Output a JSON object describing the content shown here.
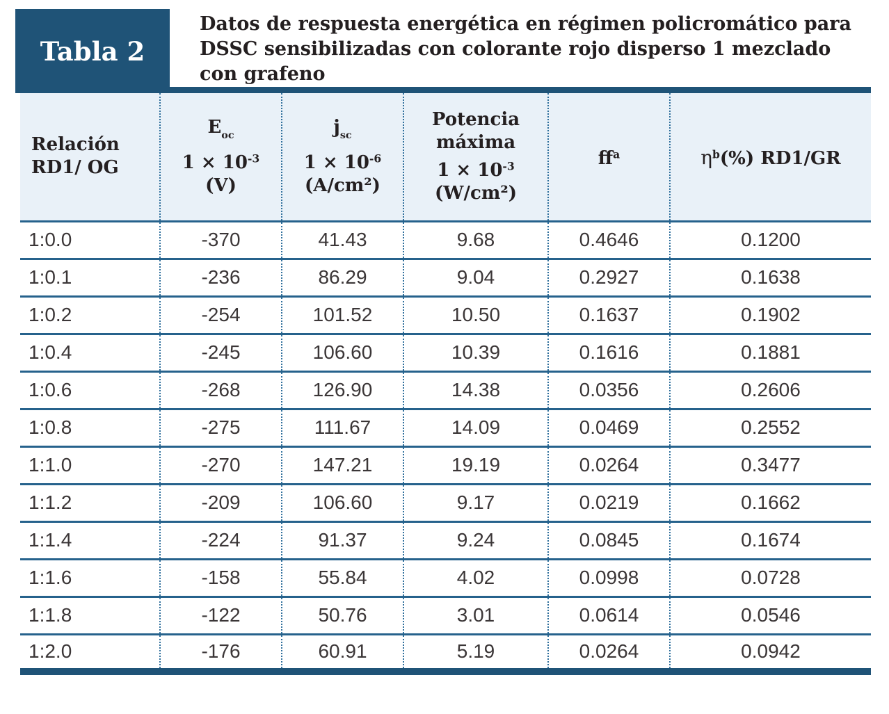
{
  "badge": {
    "label": "Tabla 2"
  },
  "title": {
    "line1": "Datos de respuesta energética en régimen policromático para",
    "line2": "DSSC sensibilizadas con colorante rojo disperso 1 mezclado",
    "line3": "con grafeno"
  },
  "colors": {
    "accent_dark_blue": "#1f5377",
    "header_background": "#e9f1f8",
    "row_rule_blue": "#26628c",
    "dotted_separator_blue": "#2f6f9c",
    "title_text": "#241f20",
    "data_text": "#3b3637"
  },
  "table": {
    "columns": {
      "relacion": {
        "line1": "Relación",
        "line2": "RD1/ OG"
      },
      "eoc": {
        "symbol": "E",
        "subscript": "oc",
        "factor_base": "1 × 10",
        "factor_exp": "-3",
        "unit": "(V)"
      },
      "jsc": {
        "symbol": "j",
        "subscript": "sc",
        "factor_base": "1 × 10",
        "factor_exp": "-6",
        "unit": "(A/cm²)"
      },
      "pmax": {
        "line1": "Potencia",
        "line2": "máxima",
        "factor_base": "1 × 10",
        "factor_exp": "-3",
        "unit": "(W/cm²)"
      },
      "ff": {
        "symbol": "ff",
        "superscript": "a"
      },
      "eta": {
        "symbol": "η",
        "superscript": "b",
        "suffix": "(%) RD1/GR"
      }
    },
    "rows": [
      [
        "1:0.0",
        "-370",
        "41.43",
        "9.68",
        "0.4646",
        "0.1200"
      ],
      [
        "1:0.1",
        "-236",
        "86.29",
        "9.04",
        "0.2927",
        "0.1638"
      ],
      [
        "1:0.2",
        "-254",
        "101.52",
        "10.50",
        "0.1637",
        "0.1902"
      ],
      [
        "1:0.4",
        "-245",
        "106.60",
        "10.39",
        "0.1616",
        "0.1881"
      ],
      [
        "1:0.6",
        "-268",
        "126.90",
        "14.38",
        "0.0356",
        "0.2606"
      ],
      [
        "1:0.8",
        "-275",
        "111.67",
        "14.09",
        "0.0469",
        "0.2552"
      ],
      [
        "1:1.0",
        "-270",
        "147.21",
        "19.19",
        "0.0264",
        "0.3477"
      ],
      [
        "1:1.2",
        "-209",
        "106.60",
        "9.17",
        "0.0219",
        "0.1662"
      ],
      [
        "1:1.4",
        "-224",
        "91.37",
        "9.24",
        "0.0845",
        "0.1674"
      ],
      [
        "1:1.6",
        "-158",
        "55.84",
        "4.02",
        "0.0998",
        "0.0728"
      ],
      [
        "1:1.8",
        "-122",
        "50.76",
        "3.01",
        "0.0614",
        "0.0546"
      ],
      [
        "1:2.0",
        "-176",
        "60.91",
        "5.19",
        "0.0264",
        "0.0942"
      ]
    ]
  }
}
